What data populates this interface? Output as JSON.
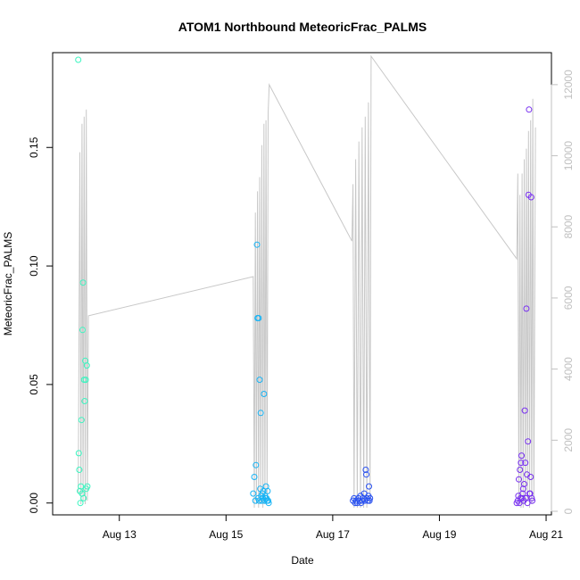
{
  "chart_data": {
    "type": "scatter",
    "title": "ATOM1 Northbound MeteoricFrac_PALMS",
    "xlabel": "Date",
    "ylabel": "MeteoricFrac_PALMS",
    "x_unit": "days in August",
    "xlim": [
      11.75,
      21.1
    ],
    "ylim": [
      -0.005,
      0.19
    ],
    "y2lim": [
      -100,
      12900
    ],
    "x_ticks": [
      {
        "value": 13,
        "label": "Aug 13"
      },
      {
        "value": 15,
        "label": "Aug 15"
      },
      {
        "value": 17,
        "label": "Aug 17"
      },
      {
        "value": 19,
        "label": "Aug 19"
      },
      {
        "value": 21,
        "label": "Aug 21"
      }
    ],
    "y_ticks": [
      {
        "value": 0.0,
        "label": "0.00"
      },
      {
        "value": 0.05,
        "label": "0.05"
      },
      {
        "value": 0.1,
        "label": "0.10"
      },
      {
        "value": 0.15,
        "label": "0.15"
      }
    ],
    "y2_ticks": [
      {
        "value": 0,
        "label": "0"
      },
      {
        "value": 2000,
        "label": "2000"
      },
      {
        "value": 4000,
        "label": "4000"
      },
      {
        "value": 6000,
        "label": "6000"
      },
      {
        "value": 8000,
        "label": "8000"
      },
      {
        "value": 10000,
        "label": "10000"
      },
      {
        "value": 12000,
        "label": "12000"
      }
    ],
    "grid": false,
    "legend": "none",
    "secondary_series": {
      "axis": "right",
      "color": "#c8c8c8",
      "points": [
        [
          12.23,
          500
        ],
        [
          12.26,
          10100
        ],
        [
          12.28,
          200
        ],
        [
          12.3,
          10900
        ],
        [
          12.32,
          300
        ],
        [
          12.34,
          11100
        ],
        [
          12.36,
          200
        ],
        [
          12.38,
          11300
        ],
        [
          12.4,
          300
        ],
        [
          12.42,
          5500
        ],
        [
          15.51,
          6600
        ],
        [
          15.53,
          100
        ],
        [
          15.55,
          8400
        ],
        [
          15.57,
          200
        ],
        [
          15.59,
          9000
        ],
        [
          15.61,
          100
        ],
        [
          15.63,
          9400
        ],
        [
          15.65,
          200
        ],
        [
          15.67,
          10300
        ],
        [
          15.69,
          100
        ],
        [
          15.71,
          10900
        ],
        [
          15.73,
          200
        ],
        [
          15.75,
          11000
        ],
        [
          15.77,
          300
        ],
        [
          15.79,
          11200
        ],
        [
          15.81,
          12000
        ],
        [
          17.36,
          7600
        ],
        [
          17.38,
          9200
        ],
        [
          17.4,
          100
        ],
        [
          17.43,
          9900
        ],
        [
          17.46,
          100
        ],
        [
          17.49,
          10400
        ],
        [
          17.52,
          100
        ],
        [
          17.55,
          10800
        ],
        [
          17.58,
          100
        ],
        [
          17.61,
          11100
        ],
        [
          17.64,
          100
        ],
        [
          17.67,
          11500
        ],
        [
          17.7,
          200
        ],
        [
          17.72,
          12800
        ],
        [
          20.45,
          7100
        ],
        [
          20.47,
          9500
        ],
        [
          20.49,
          200
        ],
        [
          20.51,
          8900
        ],
        [
          20.53,
          100
        ],
        [
          20.55,
          9500
        ],
        [
          20.57,
          100
        ],
        [
          20.59,
          9900
        ],
        [
          20.61,
          200
        ],
        [
          20.63,
          10200
        ],
        [
          20.65,
          300
        ],
        [
          20.67,
          10700
        ],
        [
          20.69,
          100
        ],
        [
          20.71,
          11000
        ],
        [
          20.73,
          200
        ],
        [
          20.75,
          11600
        ],
        [
          20.77,
          300
        ],
        [
          20.8,
          10800
        ]
      ]
    },
    "series": [
      {
        "color": "#3cf5c0",
        "points": [
          [
            12.23,
            0.187
          ],
          [
            12.24,
            0.021
          ],
          [
            12.25,
            0.014
          ],
          [
            12.26,
            0.005
          ],
          [
            12.27,
            0.0
          ],
          [
            12.28,
            0.007
          ],
          [
            12.29,
            0.035
          ],
          [
            12.3,
            0.004
          ],
          [
            12.31,
            0.073
          ],
          [
            12.32,
            0.093
          ],
          [
            12.33,
            0.002
          ],
          [
            12.34,
            0.052
          ],
          [
            12.35,
            0.043
          ],
          [
            12.36,
            0.06
          ],
          [
            12.37,
            0.052
          ],
          [
            12.38,
            0.006
          ],
          [
            12.39,
            0.058
          ],
          [
            12.4,
            0.007
          ]
        ]
      },
      {
        "color": "#19b4f5",
        "points": [
          [
            15.51,
            0.004
          ],
          [
            15.53,
            0.011
          ],
          [
            15.55,
            0.001
          ],
          [
            15.56,
            0.016
          ],
          [
            15.58,
            0.109
          ],
          [
            15.59,
            0.078
          ],
          [
            15.6,
            0.002
          ],
          [
            15.61,
            0.078
          ],
          [
            15.62,
            0.001
          ],
          [
            15.63,
            0.052
          ],
          [
            15.64,
            0.006
          ],
          [
            15.65,
            0.038
          ],
          [
            15.66,
            0.003
          ],
          [
            15.67,
            0.001
          ],
          [
            15.68,
            0.004
          ],
          [
            15.69,
            0.002
          ],
          [
            15.7,
            0.005
          ],
          [
            15.71,
            0.046
          ],
          [
            15.72,
            0.001
          ],
          [
            15.73,
            0.003
          ],
          [
            15.74,
            0.002
          ],
          [
            15.75,
            0.007
          ],
          [
            15.76,
            0.002
          ],
          [
            15.77,
            0.001
          ],
          [
            15.78,
            0.005
          ],
          [
            15.79,
            0.001
          ],
          [
            15.8,
            0.0
          ]
        ]
      },
      {
        "color": "#2850f0",
        "points": [
          [
            17.38,
            0.001
          ],
          [
            17.4,
            0.002
          ],
          [
            17.42,
            0.0
          ],
          [
            17.44,
            0.001
          ],
          [
            17.46,
            0.0
          ],
          [
            17.48,
            0.002
          ],
          [
            17.5,
            0.001
          ],
          [
            17.52,
            0.003
          ],
          [
            17.53,
            0.0
          ],
          [
            17.55,
            0.001
          ],
          [
            17.57,
            0.002
          ],
          [
            17.59,
            0.004
          ],
          [
            17.6,
            0.001
          ],
          [
            17.62,
            0.014
          ],
          [
            17.63,
            0.012
          ],
          [
            17.64,
            0.002
          ],
          [
            17.66,
            0.001
          ],
          [
            17.67,
            0.003
          ],
          [
            17.68,
            0.007
          ],
          [
            17.69,
            0.001
          ],
          [
            17.7,
            0.002
          ]
        ]
      },
      {
        "color": "#7830f0",
        "points": [
          [
            20.45,
            0.0
          ],
          [
            20.47,
            0.001
          ],
          [
            20.48,
            0.003
          ],
          [
            20.49,
            0.01
          ],
          [
            20.5,
            0.0
          ],
          [
            20.51,
            0.014
          ],
          [
            20.52,
            0.002
          ],
          [
            20.53,
            0.017
          ],
          [
            20.54,
            0.02
          ],
          [
            20.55,
            0.002
          ],
          [
            20.56,
            0.004
          ],
          [
            20.57,
            0.006
          ],
          [
            20.58,
            0.001
          ],
          [
            20.59,
            0.008
          ],
          [
            20.6,
            0.039
          ],
          [
            20.61,
            0.017
          ],
          [
            20.62,
            0.002
          ],
          [
            20.63,
            0.082
          ],
          [
            20.64,
            0.012
          ],
          [
            20.65,
            0.0
          ],
          [
            20.66,
            0.026
          ],
          [
            20.67,
            0.13
          ],
          [
            20.68,
            0.166
          ],
          [
            20.69,
            0.004
          ],
          [
            20.7,
            0.004
          ],
          [
            20.71,
            0.011
          ],
          [
            20.72,
            0.129
          ],
          [
            20.73,
            0.002
          ],
          [
            20.74,
            0.001
          ]
        ]
      }
    ]
  }
}
